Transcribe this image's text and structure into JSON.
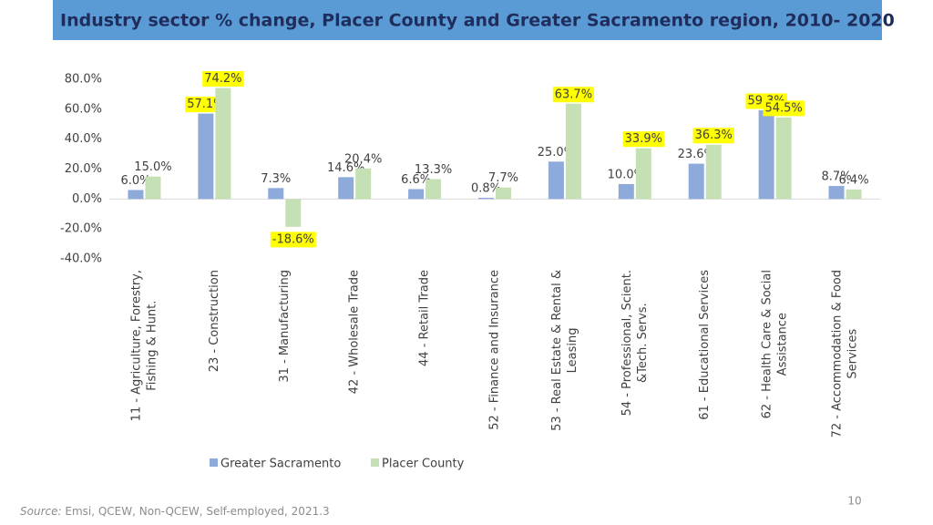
{
  "chart_data": {
    "type": "bar",
    "title": "Industry sector % change, Placer County and Greater Sacramento region, 2010- 2020",
    "categories": [
      [
        "11 - Agriculture, Forestry,",
        "Fishing & Hunt."
      ],
      [
        "23 - Construction"
      ],
      [
        "31 - Manufacturing"
      ],
      [
        "42 - Wholesale Trade"
      ],
      [
        "44 - Retail Trade"
      ],
      [
        "52 - Finance and Insurance"
      ],
      [
        "53 - Real Estate & Rental &",
        "Leasing"
      ],
      [
        "54 - Professional, Scient.",
        "&Tech. Servs."
      ],
      [
        "61 - Educational Services"
      ],
      [
        "62 - Health Care & Social",
        "Assistance"
      ],
      [
        "72 - Accommodation & Food",
        "Services"
      ]
    ],
    "series": [
      {
        "name": "Greater Sacramento",
        "color": "#8eaadb",
        "values": [
          6.0,
          57.1,
          7.3,
          14.6,
          6.6,
          0.8,
          25.0,
          10.0,
          23.6,
          59.3,
          8.7
        ],
        "value_labels": [
          "6.0%",
          "57.1%",
          "7.3%",
          "14.6%",
          "6.6%",
          "0.8%",
          "25.0%",
          "10.0%",
          "23.6%",
          "59.3%",
          "8.7%"
        ],
        "highlight": [
          1,
          9
        ]
      },
      {
        "name": "Placer County",
        "color": "#c5e0b4",
        "values": [
          15.0,
          74.2,
          -18.6,
          20.4,
          13.3,
          7.7,
          63.7,
          33.9,
          36.3,
          54.5,
          6.4
        ],
        "value_labels": [
          "15.0%",
          "74.2%",
          "-18.6%",
          "20.4%",
          "13.3%",
          "7.7%",
          "63.7%",
          "33.9%",
          "36.3%",
          "54.5%",
          "6.4%"
        ],
        "highlight": [
          1,
          2,
          6,
          7,
          8,
          9
        ]
      }
    ],
    "ylim": [
      -40,
      80
    ],
    "yticks": [
      {
        "value": -40,
        "label": "-40.0%"
      },
      {
        "value": -20,
        "label": "-20.0%"
      },
      {
        "value": 0,
        "label": "0.0%"
      },
      {
        "value": 20,
        "label": "20.0%"
      },
      {
        "value": 40,
        "label": "40.0%"
      },
      {
        "value": 60,
        "label": "60.0%"
      },
      {
        "value": 80,
        "label": "80.0%"
      }
    ],
    "highlight_color": "#ffff00",
    "legend": "bottom"
  },
  "source": {
    "label": "Source:",
    "text": "Emsi, QCEW, Non-QCEW, Self-employed, 2021.3"
  },
  "page_number": "10"
}
